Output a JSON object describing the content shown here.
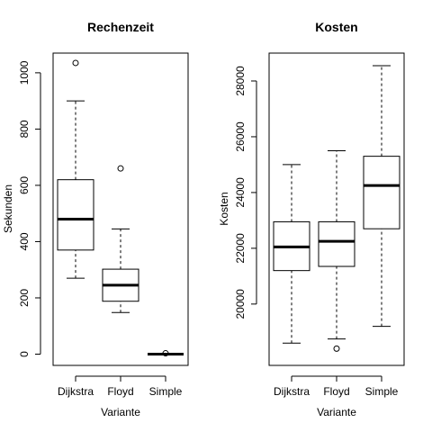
{
  "chart_data": [
    {
      "type": "box",
      "title": "Rechenzeit",
      "xlabel": "Variante",
      "ylabel": "Sekunden",
      "categories": [
        "Dijkstra",
        "Floyd",
        "Simple"
      ],
      "ylim": [
        -40,
        1070
      ],
      "yticks": [
        0,
        200,
        400,
        600,
        800,
        1000
      ],
      "boxes": [
        {
          "category": "Dijkstra",
          "whisker_low": 270,
          "q1": 370,
          "median": 480,
          "q3": 620,
          "whisker_high": 900,
          "outliers": [
            1035
          ]
        },
        {
          "category": "Floyd",
          "whisker_low": 148,
          "q1": 188,
          "median": 245,
          "q3": 302,
          "whisker_high": 445,
          "outliers": [
            660
          ]
        },
        {
          "category": "Simple",
          "whisker_low": 0,
          "q1": 0,
          "median": 0,
          "q3": 0,
          "whisker_high": 0,
          "outliers": [
            3
          ]
        }
      ],
      "grid": false,
      "legend": "none"
    },
    {
      "type": "box",
      "title": "Kosten",
      "xlabel": "Variante",
      "ylabel": "Kosten",
      "categories": [
        "Dijkstra",
        "Floyd",
        "Simple"
      ],
      "ylim": [
        17800,
        29000
      ],
      "yticks": [
        20000,
        22000,
        24000,
        26000,
        28000
      ],
      "boxes": [
        {
          "category": "Dijkstra",
          "whisker_low": 18600,
          "q1": 21200,
          "median": 22050,
          "q3": 22950,
          "whisker_high": 25000,
          "outliers": []
        },
        {
          "category": "Floyd",
          "whisker_low": 18750,
          "q1": 21350,
          "median": 22250,
          "q3": 22950,
          "whisker_high": 25500,
          "outliers": [
            18400
          ]
        },
        {
          "category": "Simple",
          "whisker_low": 19200,
          "q1": 22700,
          "median": 24250,
          "q3": 25300,
          "whisker_high": 28550,
          "outliers": []
        }
      ],
      "grid": false,
      "legend": "none"
    }
  ]
}
